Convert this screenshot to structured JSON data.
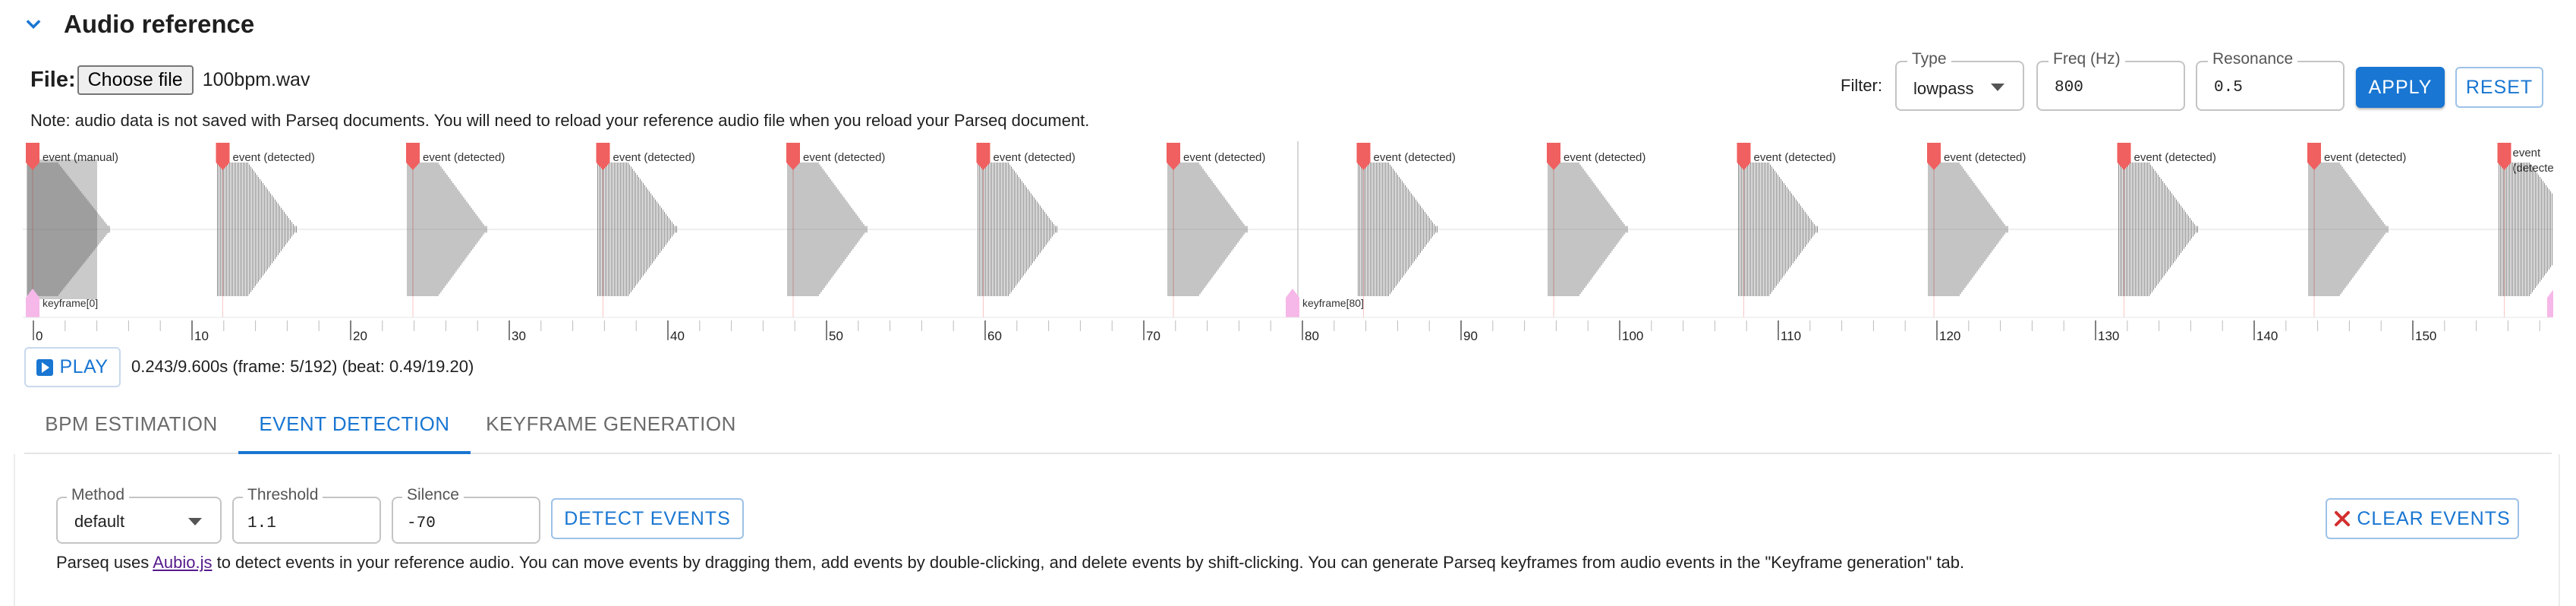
{
  "section": {
    "title": "Audio reference",
    "chevron_icon": "chevron-down-icon"
  },
  "file": {
    "label": "File:",
    "choose_label": "Choose file",
    "file_name": "100bpm.wav"
  },
  "note": "Note: audio data is not saved with Parseq documents. You will need to reload your reference audio file when you reload your Parseq document.",
  "filter": {
    "label": "Filter:",
    "type": {
      "label": "Type",
      "value": "lowpass"
    },
    "freq": {
      "label": "Freq (Hz)",
      "value": "800"
    },
    "resonance": {
      "label": "Resonance",
      "value": "0.5"
    },
    "apply_label": "APPLY",
    "reset_label": "RESET"
  },
  "waveform": {
    "events": [
      {
        "label": "event (manual)"
      },
      {
        "label": "event (detected)"
      },
      {
        "label": "event (detected)"
      },
      {
        "label": "event (detected)"
      },
      {
        "label": "event (detected)"
      },
      {
        "label": "event (detected)"
      },
      {
        "label": "event (detected)"
      },
      {
        "label": "event (detected)"
      },
      {
        "label": "event (detected)"
      },
      {
        "label": "event (detected)"
      },
      {
        "label": "event (detected)"
      },
      {
        "label": "event (detected)"
      },
      {
        "label": "event (detected)"
      },
      {
        "label": "event (detected)"
      }
    ],
    "keyframes": [
      "keyframe[0]",
      "keyframe[80]"
    ],
    "ruler_labels": [
      "0",
      "10",
      "20",
      "30",
      "40",
      "50",
      "60",
      "70",
      "80",
      "90",
      "100",
      "110",
      "120",
      "130",
      "140",
      "150"
    ],
    "colors": {
      "event": "#f06060",
      "keyframe": "#f6b8e8",
      "wave": "#8a8a8a"
    }
  },
  "playback": {
    "play_label": "PLAY",
    "status": "0.243/9.600s (frame: 5/192) (beat: 0.49/19.20)"
  },
  "tabs": [
    {
      "label": "BPM ESTIMATION"
    },
    {
      "label": "EVENT DETECTION"
    },
    {
      "label": "KEYFRAME GENERATION"
    }
  ],
  "detection": {
    "method": {
      "label": "Method",
      "value": "default"
    },
    "threshold": {
      "label": "Threshold",
      "value": "1.1"
    },
    "silence": {
      "label": "Silence",
      "value": "-70"
    },
    "detect_label": "DETECT EVENTS",
    "clear_label": "CLEAR EVENTS",
    "help_prefix": "Parseq uses ",
    "help_link": "Aubio.js",
    "help_suffix": " to detect events in your reference audio. You can move events by dragging them, add events by double-clicking, and delete events by shift-clicking. You can generate Parseq keyframes from audio events in the \"Keyframe generation\" tab."
  },
  "accent": "#1976d2"
}
